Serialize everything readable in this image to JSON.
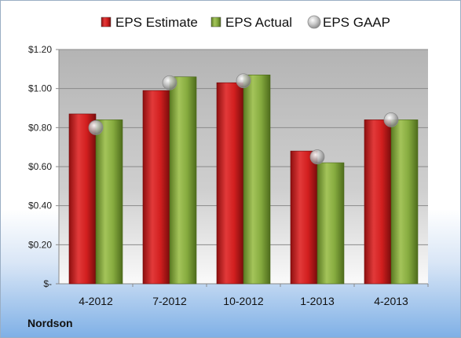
{
  "company": "Nordson",
  "colors": {
    "estimate": "#cc1f1f",
    "actual": "#7fa33a",
    "gaap": "#b8b8b8"
  },
  "chart_data": {
    "type": "bar",
    "categories": [
      "4-2012",
      "7-2012",
      "10-2012",
      "1-2013",
      "4-2013"
    ],
    "series": [
      {
        "name": "EPS Estimate",
        "type": "bar",
        "values": [
          0.87,
          0.99,
          1.03,
          0.68,
          0.84
        ]
      },
      {
        "name": "EPS Actual",
        "type": "bar",
        "values": [
          0.84,
          1.06,
          1.07,
          0.62,
          0.84
        ]
      },
      {
        "name": "EPS GAAP",
        "type": "scatter",
        "values": [
          0.8,
          1.03,
          1.04,
          0.65,
          0.84
        ]
      }
    ],
    "ylim": [
      0,
      1.2
    ],
    "yticks": [
      0,
      0.2,
      0.4,
      0.6,
      0.8,
      1.0,
      1.2
    ],
    "ytick_labels": [
      "$-",
      "$0.20",
      "$0.40",
      "$0.60",
      "$0.80",
      "$1.00",
      "$1.20"
    ],
    "legend": "top",
    "grid": true
  }
}
